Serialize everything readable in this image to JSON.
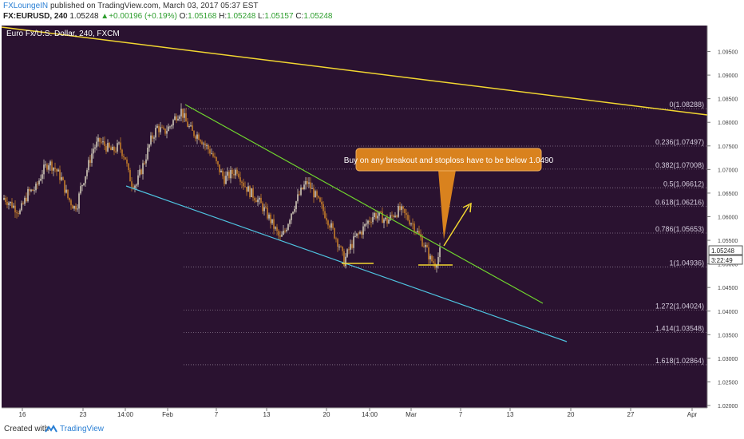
{
  "header": {
    "author": "FXLoungeIN",
    "published": "published on TradingView.com, March 03, 2017 05:37 EST",
    "symbol": "FX:EURUSD, 240",
    "price": "1.05248",
    "change": "+0.00196 (+0.19%)",
    "o_label": "O:",
    "o": "1.05168",
    "h_label": "H:",
    "h": "1.05248",
    "l_label": "L:",
    "l": "1.05157",
    "c_label": "C:",
    "c": "1.05248"
  },
  "footer": {
    "created_with": "Created with",
    "brand": "TradingView"
  },
  "colors": {
    "background": "#2a1230",
    "bull": "#e8e3cc",
    "bear": "#d88a28",
    "yellow": "#f2d630",
    "green": "#6fd32e",
    "cyan": "#4ec3e0",
    "annotation": "#d9821e",
    "price_tag": "#ffffff"
  },
  "chart_data": {
    "type": "candlestick",
    "title": "Euro Fx/U.S. Dollar, 240, FXCM",
    "ylim": [
      1.0195,
      1.1005
    ],
    "x_ticks": [
      "16",
      "23",
      "14:00",
      "Feb",
      "7",
      "13",
      "20",
      "14:00",
      "Mar",
      "7",
      "13",
      "20",
      "27",
      "Apr"
    ],
    "y_ticks": [
      "1.09500",
      "1.09000",
      "1.08500",
      "1.08000",
      "1.07500",
      "1.07000",
      "1.06500",
      "1.06000",
      "1.05500",
      "1.05000",
      "1.04500",
      "1.04000",
      "1.03500",
      "1.03000",
      "1.02500",
      "1.02000"
    ],
    "last_price": "1.05248",
    "countdown": "3:22:49",
    "fib_levels": [
      {
        "ratio": "0",
        "value": 1.08288,
        "label": "0(1.08288)"
      },
      {
        "ratio": "0.236",
        "value": 1.07497,
        "label": "0.236(1.07497)"
      },
      {
        "ratio": "0.382",
        "value": 1.07008,
        "label": "0.382(1.07008)"
      },
      {
        "ratio": "0.5",
        "value": 1.06612,
        "label": "0.5(1.06612)"
      },
      {
        "ratio": "0.618",
        "value": 1.06216,
        "label": "0.618(1.06216)"
      },
      {
        "ratio": "0.786",
        "value": 1.05653,
        "label": "0.786(1.05653)"
      },
      {
        "ratio": "1",
        "value": 1.04936,
        "label": "1(1.04936)"
      },
      {
        "ratio": "1.272",
        "value": 1.04024,
        "label": "1.272(1.04024)"
      },
      {
        "ratio": "1.414",
        "value": 1.03548,
        "label": "1.414(1.03548)"
      },
      {
        "ratio": "1.618",
        "value": 1.02864,
        "label": "1.618(1.02864)"
      }
    ],
    "annotation": "Buy on any breakout and stoploss have to be below 1.0490",
    "close_path": [
      [
        0,
        1.064
      ],
      [
        5,
        1.0625
      ],
      [
        10,
        1.061
      ],
      [
        15,
        1.065
      ],
      [
        20,
        1.066
      ],
      [
        24,
        1.0695
      ],
      [
        28,
        1.0715
      ],
      [
        32,
        1.0702
      ],
      [
        36,
        1.068
      ],
      [
        40,
        1.064
      ],
      [
        44,
        1.062
      ],
      [
        46,
        1.0628
      ],
      [
        48,
        1.066
      ],
      [
        52,
        1.07
      ],
      [
        56,
        1.0745
      ],
      [
        60,
        1.076
      ],
      [
        64,
        1.0748
      ],
      [
        68,
        1.0738
      ],
      [
        72,
        1.075
      ],
      [
        76,
        1.0725
      ],
      [
        78,
        1.069
      ],
      [
        80,
        1.0672
      ],
      [
        83,
        1.0668
      ],
      [
        85,
        1.069
      ],
      [
        88,
        1.0718
      ],
      [
        92,
        1.0762
      ],
      [
        96,
        1.079
      ],
      [
        100,
        1.0778
      ],
      [
        104,
        1.0792
      ],
      [
        108,
        1.0815
      ],
      [
        111,
        1.0825
      ],
      [
        114,
        1.08
      ],
      [
        118,
        1.0778
      ],
      [
        122,
        1.0772
      ],
      [
        126,
        1.0752
      ],
      [
        130,
        1.0735
      ],
      [
        134,
        1.0705
      ],
      [
        138,
        1.068
      ],
      [
        142,
        1.069
      ],
      [
        146,
        1.07
      ],
      [
        150,
        1.067
      ],
      [
        154,
        1.0652
      ],
      [
        158,
        1.064
      ],
      [
        162,
        1.062
      ],
      [
        166,
        1.0598
      ],
      [
        170,
        1.0572
      ],
      [
        173,
        1.0552
      ],
      [
        176,
        1.057
      ],
      [
        180,
        1.061
      ],
      [
        184,
        1.064
      ],
      [
        188,
        1.0665
      ],
      [
        190,
        1.0673
      ],
      [
        194,
        1.065
      ],
      [
        198,
        1.0625
      ],
      [
        202,
        1.06
      ],
      [
        206,
        1.057
      ],
      [
        210,
        1.054
      ],
      [
        213,
        1.0505
      ],
      [
        216,
        1.053
      ],
      [
        220,
        1.0555
      ],
      [
        224,
        1.057
      ],
      [
        228,
        1.059
      ],
      [
        232,
        1.0605
      ],
      [
        236,
        1.06
      ],
      [
        240,
        1.059
      ],
      [
        244,
        1.0605
      ],
      [
        248,
        1.0615
      ],
      [
        252,
        1.06
      ],
      [
        256,
        1.0585
      ],
      [
        260,
        1.056
      ],
      [
        264,
        1.0535
      ],
      [
        267,
        1.051
      ],
      [
        270,
        1.05
      ],
      [
        272,
        1.0515
      ],
      [
        273,
        1.0525
      ]
    ]
  }
}
